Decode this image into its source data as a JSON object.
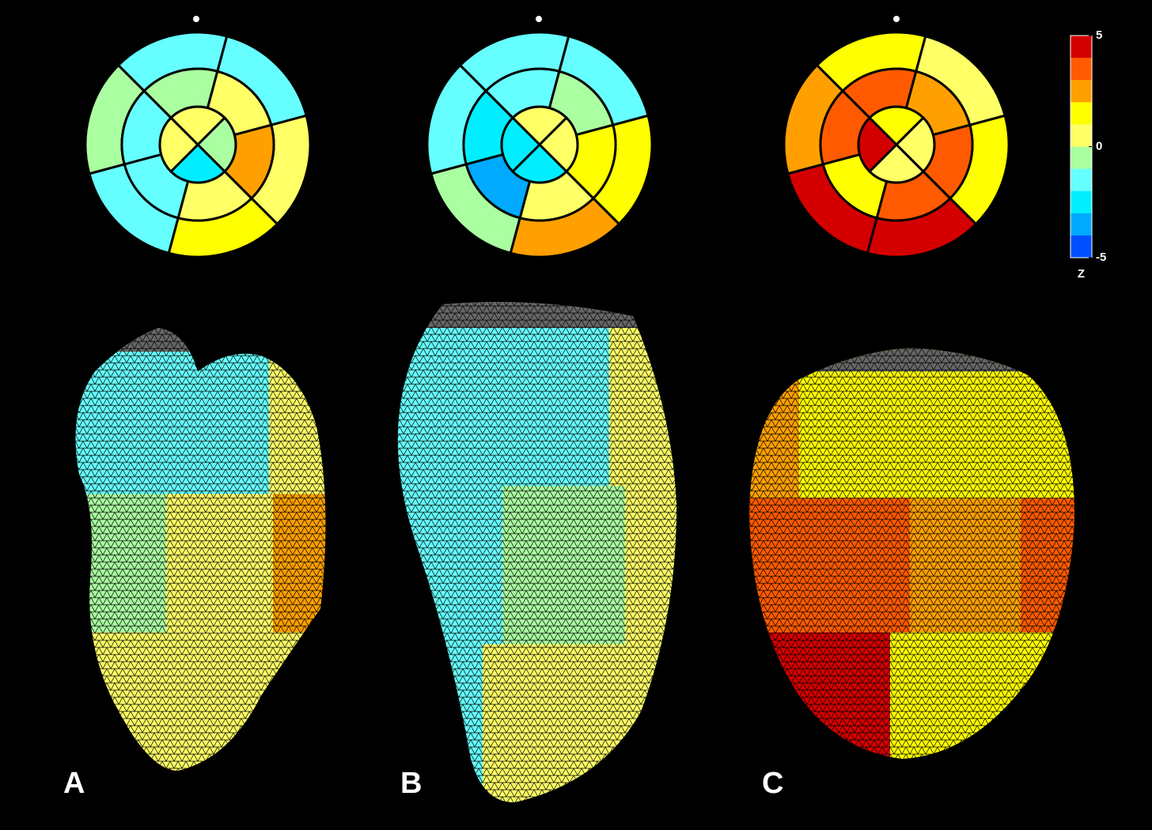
{
  "colorbar": {
    "label": "Z",
    "ticks": [
      5,
      0,
      -5
    ],
    "colors": [
      "#d40000",
      "#ff5a00",
      "#ffa000",
      "#ffff00",
      "#ffff66",
      "#aaffa0",
      "#66ffff",
      "#00eeff",
      "#00aaff",
      "#0050ff"
    ]
  },
  "panels": [
    {
      "label": "A",
      "basal": [
        "#66ffff",
        "#66ffff",
        "#ffff66",
        "#ffff00",
        "#66ffff",
        "#aaffa0"
      ],
      "mid": [
        "#aaffa0",
        "#ffff66",
        "#ffa000",
        "#ffff66",
        "#66ffff",
        "#66ffff"
      ],
      "apical": [
        "#ffff66",
        "#aaffa0",
        "#00eeff",
        "#ffff66"
      ]
    },
    {
      "label": "B",
      "basal": [
        "#66ffff",
        "#66ffff",
        "#ffff00",
        "#ffa000",
        "#aaffa0",
        "#66ffff"
      ],
      "mid": [
        "#66ffff",
        "#aaffa0",
        "#ffff00",
        "#ffff66",
        "#00aaff",
        "#00eeff"
      ],
      "apical": [
        "#ffff66",
        "#ffff66",
        "#00eeff",
        "#00eeff"
      ]
    },
    {
      "label": "C",
      "basal": [
        "#ffff00",
        "#ffff66",
        "#ffff00",
        "#d40000",
        "#d40000",
        "#ffa000"
      ],
      "mid": [
        "#ff5a00",
        "#ffa000",
        "#ff5a00",
        "#ff5a00",
        "#ffff00",
        "#ff5a00"
      ],
      "apical": [
        "#ffff00",
        "#ffff66",
        "#ffff66",
        "#d40000"
      ]
    }
  ]
}
